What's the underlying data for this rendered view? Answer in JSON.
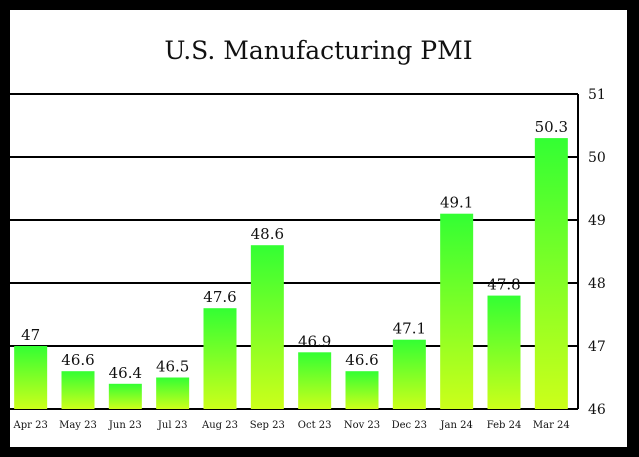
{
  "chart_data": {
    "type": "bar",
    "title": "U.S. Manufacturing PMI",
    "xlabel": "",
    "ylabel": "",
    "categories": [
      "Apr 23",
      "May 23",
      "Jun 23",
      "Jul 23",
      "Aug 23",
      "Sep 23",
      "Oct 23",
      "Nov 23",
      "Dec 23",
      "Jan 24",
      "Feb 24",
      "Mar 24"
    ],
    "values": [
      47.0,
      46.6,
      46.4,
      46.5,
      47.6,
      48.6,
      46.9,
      46.6,
      47.1,
      49.1,
      47.8,
      50.3
    ],
    "data_labels": [
      "47",
      "46.6",
      "46.4",
      "46.5",
      "47.6",
      "48.6",
      "46.9",
      "46.6",
      "47.1",
      "49.1",
      "47.8",
      "50.3"
    ],
    "ylim": [
      46,
      51
    ],
    "yticks": [
      "46",
      "47",
      "48",
      "49",
      "50",
      "51"
    ],
    "y_axis_side": "right",
    "grid": true,
    "legend": "none",
    "bar_gradient": {
      "top": "#33ff33",
      "bottom": "#ccff1a"
    },
    "background": "#ffffff",
    "border": "#000000"
  }
}
